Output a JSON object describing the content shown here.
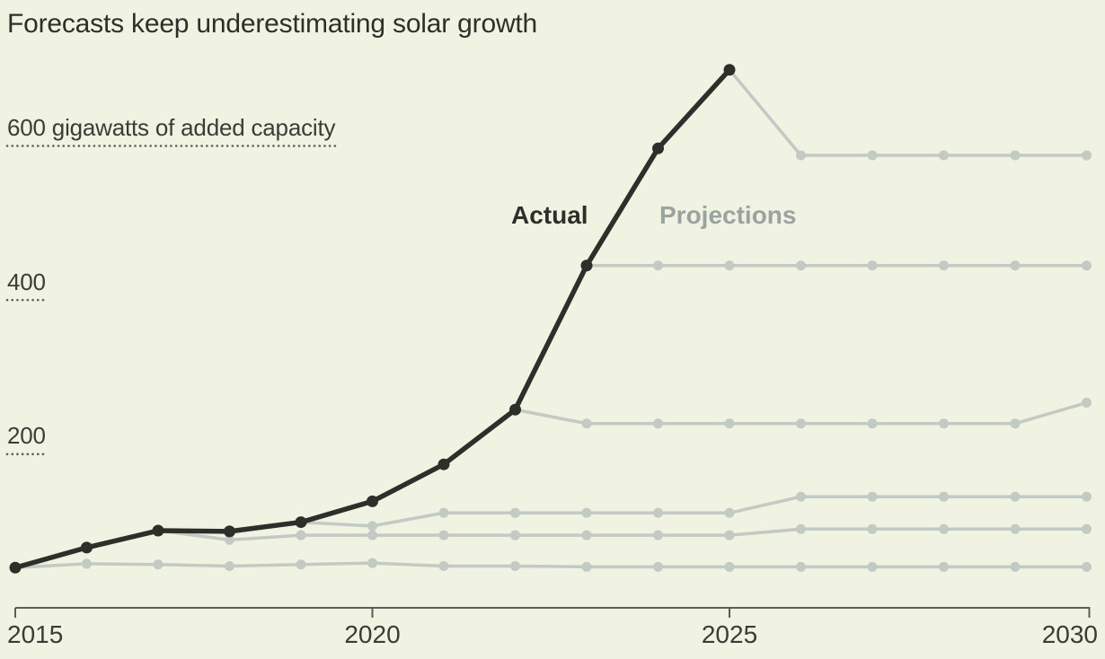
{
  "title": "Forecasts keep underestimating solar growth",
  "annotations": {
    "actual": "Actual",
    "projections": "Projections"
  },
  "y_axis": {
    "ticks": [
      {
        "value": 600,
        "label": "600 gigawatts of added capacity"
      },
      {
        "value": 400,
        "label": "400"
      },
      {
        "value": 200,
        "label": "200"
      }
    ]
  },
  "x_axis": {
    "ticks": [
      {
        "year": 2015,
        "label": "2015"
      },
      {
        "year": 2020,
        "label": "2020"
      },
      {
        "year": 2025,
        "label": "2025"
      },
      {
        "year": 2030,
        "label": "2030"
      }
    ]
  },
  "colors": {
    "background": "#f0f2e2",
    "actual_line": "#2d302a",
    "projection_line": "#c2cac3",
    "projections_label": "#99a39f",
    "title_text": "#2c302a",
    "axis_text": "#393d35",
    "axis_line": "#5a5f55",
    "grid_dots": "#5f635a"
  },
  "chart_data": {
    "type": "line",
    "title": "Forecasts keep underestimating solar growth",
    "xlabel": "",
    "ylabel": "gigawatts of added capacity",
    "units": "gigawatts of annual added solar capacity",
    "x_range": [
      2015,
      2030
    ],
    "ylim": [
      0,
      720
    ],
    "grid": "short dotted y-ticks at 200, 400, 600 under left-edge labels",
    "legend": "inline annotations: Actual (dark) / Projections (gray)",
    "series": [
      {
        "name": "projection-2015",
        "role": "projection",
        "start_year": 2015,
        "values": [
          51,
          56,
          55,
          53,
          55,
          57,
          53,
          53,
          52,
          52,
          52,
          52,
          52,
          52,
          52,
          52
        ]
      },
      {
        "name": "projection-2017",
        "role": "projection",
        "start_year": 2017,
        "values": [
          99,
          87,
          93,
          93,
          93,
          93,
          93,
          93,
          93,
          101,
          101,
          101,
          101,
          101
        ]
      },
      {
        "name": "projection-2019",
        "role": "projection",
        "start_year": 2019,
        "values": [
          110,
          105,
          122,
          122,
          122,
          122,
          122,
          143,
          143,
          143,
          143,
          143
        ]
      },
      {
        "name": "projection-2022",
        "role": "projection",
        "start_year": 2022,
        "values": [
          256,
          238,
          238,
          238,
          238,
          238,
          238,
          238,
          265
        ]
      },
      {
        "name": "projection-2023",
        "role": "projection",
        "start_year": 2023,
        "values": [
          443,
          443,
          443,
          443,
          443,
          443,
          443,
          443
        ]
      },
      {
        "name": "projection-2025",
        "role": "projection",
        "start_year": 2025,
        "values": [
          697,
          586,
          586,
          586,
          586,
          586
        ]
      },
      {
        "name": "Actual",
        "role": "actual",
        "start_year": 2015,
        "values": [
          51,
          77,
          99,
          98,
          110,
          137,
          185,
          256,
          443,
          595,
          697
        ]
      }
    ]
  }
}
